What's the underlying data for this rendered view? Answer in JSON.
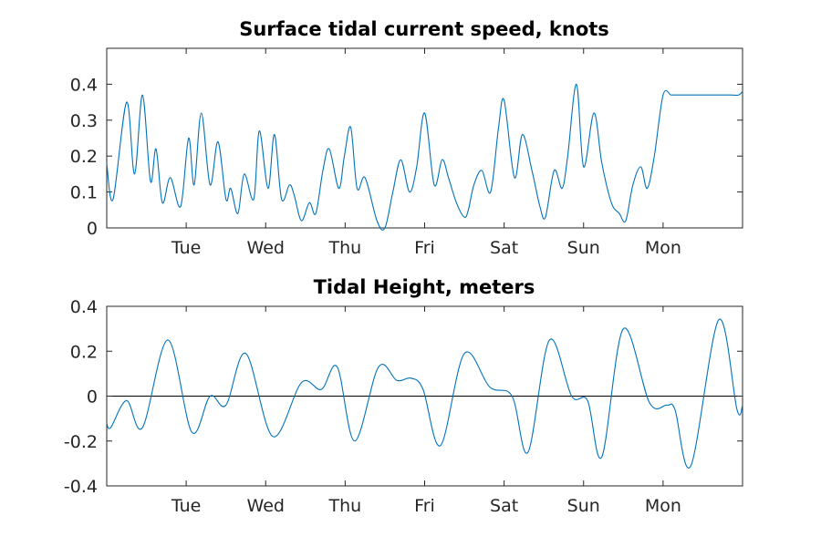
{
  "colors": {
    "series": "#0072BD",
    "axis": "#262626",
    "zero_line": "#000000"
  },
  "chart_data": [
    {
      "type": "line",
      "title": "Surface tidal current speed, knots",
      "xlabel": "",
      "ylabel": "",
      "xlim": [
        0,
        8
      ],
      "ylim": [
        0,
        0.5
      ],
      "grid": false,
      "x_ticks": [
        1,
        2,
        3,
        4,
        5,
        6,
        7
      ],
      "x_tick_labels": [
        "Tue",
        "Wed",
        "Thu",
        "Fri",
        "Sat",
        "Sun",
        "Mon"
      ],
      "y_ticks": [
        0,
        0.1,
        0.2,
        0.3,
        0.4
      ],
      "y_tick_labels": [
        "0",
        "0.1",
        "0.2",
        "0.3",
        "0.4"
      ],
      "series": [
        {
          "x": [
            0,
            0.08,
            0.25,
            0.35,
            0.45,
            0.55,
            0.62,
            0.7,
            0.8,
            0.93,
            1.03,
            1.1,
            1.19,
            1.3,
            1.4,
            1.5,
            1.56,
            1.65,
            1.73,
            1.85,
            1.92,
            2.03,
            2.11,
            2.2,
            2.3,
            2.36,
            2.45,
            2.55,
            2.63,
            2.72,
            2.8,
            2.92,
            2.99,
            3.07,
            3.15,
            3.25,
            3.4,
            3.5,
            3.6,
            3.7,
            3.81,
            3.9,
            4.0,
            4.12,
            4.22,
            4.3,
            4.4,
            4.5,
            4.55,
            4.62,
            4.72,
            4.83,
            4.93,
            5.0,
            5.13,
            5.23,
            5.35,
            5.45,
            5.52,
            5.63,
            5.73,
            5.8,
            5.91,
            6.0,
            6.13,
            6.23,
            6.35,
            6.45,
            6.53,
            6.62,
            6.72,
            6.8,
            6.89,
            7.0,
            7.1,
            7.17,
            7.3,
            7.4,
            7.5,
            7.6,
            7.68,
            7.78,
            7.85,
            7.95,
            8.0
          ],
          "y": [
            0.18,
            0.08,
            0.35,
            0.15,
            0.37,
            0.13,
            0.22,
            0.07,
            0.14,
            0.06,
            0.25,
            0.12,
            0.32,
            0.12,
            0.24,
            0.08,
            0.11,
            0.04,
            0.15,
            0.08,
            0.27,
            0.11,
            0.26,
            0.08,
            0.12,
            0.09,
            0.02,
            0.07,
            0.04,
            0.16,
            0.22,
            0.11,
            0.2,
            0.28,
            0.11,
            0.14,
            0.02,
            0.0,
            0.1,
            0.19,
            0.1,
            0.17,
            0.32,
            0.12,
            0.19,
            0.14,
            0.07,
            0.03,
            0.05,
            0.12,
            0.16,
            0.1,
            0.28,
            0.355,
            0.14,
            0.26,
            0.16,
            0.06,
            0.03,
            0.16,
            0.11,
            0.2,
            0.4,
            0.17,
            0.32,
            0.18,
            0.07,
            0.04,
            0.02,
            0.12,
            0.17,
            0.11,
            0.2,
            0.37,
            0.37,
            0.37,
            0.37,
            0.37,
            0.37,
            0.37,
            0.37,
            0.37,
            0.37,
            0.37,
            0.38
          ]
        }
      ]
    },
    {
      "type": "line",
      "title": "Tidal Height, meters",
      "xlabel": "",
      "ylabel": "",
      "xlim": [
        0,
        8
      ],
      "ylim": [
        -0.4,
        0.4
      ],
      "grid": false,
      "zero_line": true,
      "x_ticks": [
        1,
        2,
        3,
        4,
        5,
        6,
        7
      ],
      "x_tick_labels": [
        "Tue",
        "Wed",
        "Thu",
        "Fri",
        "Sat",
        "Sun",
        "Mon"
      ],
      "y_ticks": [
        -0.4,
        -0.2,
        0,
        0.2,
        0.4
      ],
      "y_tick_labels": [
        "-0.4",
        "-0.2",
        "0",
        "0.2",
        "0.4"
      ],
      "series": [
        {
          "x": [
            0,
            0.05,
            0.25,
            0.45,
            0.77,
            1.07,
            1.3,
            1.5,
            1.75,
            2.09,
            2.45,
            2.7,
            2.9,
            3.12,
            3.42,
            3.65,
            3.83,
            3.98,
            4.2,
            4.5,
            4.82,
            5.1,
            5.3,
            5.57,
            5.85,
            6.05,
            6.23,
            6.5,
            6.83,
            7.05,
            7.15,
            7.35,
            7.7,
            7.93,
            8.0
          ],
          "y": [
            -0.12,
            -0.14,
            -0.02,
            -0.14,
            0.25,
            -0.16,
            0.0,
            -0.04,
            0.19,
            -0.18,
            0.06,
            0.03,
            0.13,
            -0.2,
            0.13,
            0.07,
            0.08,
            0.03,
            -0.22,
            0.19,
            0.04,
            0.0,
            -0.25,
            0.25,
            0.0,
            -0.02,
            -0.27,
            0.3,
            -0.03,
            -0.04,
            -0.06,
            -0.31,
            0.34,
            -0.06,
            -0.04
          ]
        }
      ]
    }
  ]
}
